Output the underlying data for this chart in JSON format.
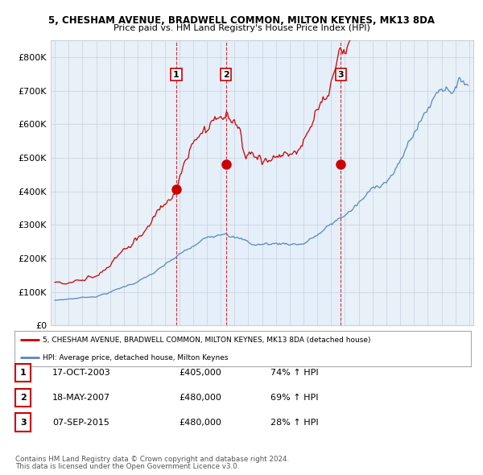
{
  "title1": "5, CHESHAM AVENUE, BRADWELL COMMON, MILTON KEYNES, MK13 8DA",
  "title2": "Price paid vs. HM Land Registry's House Price Index (HPI)",
  "ylim": [
    0,
    850000
  ],
  "yticks": [
    0,
    100000,
    200000,
    300000,
    400000,
    500000,
    600000,
    700000,
    800000
  ],
  "ytick_labels": [
    "£0",
    "£100K",
    "£200K",
    "£300K",
    "£400K",
    "£500K",
    "£600K",
    "£700K",
    "£800K"
  ],
  "sale_dates": [
    2003.79,
    2007.38,
    2015.69
  ],
  "sale_prices": [
    405000,
    480000,
    480000
  ],
  "sale_labels": [
    "1",
    "2",
    "3"
  ],
  "legend_label_red": "5, CHESHAM AVENUE, BRADWELL COMMON, MILTON KEYNES, MK13 8DA (detached house)",
  "legend_label_blue": "HPI: Average price, detached house, Milton Keynes",
  "table_data": [
    [
      "1",
      "17-OCT-2003",
      "£405,000",
      "74% ↑ HPI"
    ],
    [
      "2",
      "18-MAY-2007",
      "£480,000",
      "69% ↑ HPI"
    ],
    [
      "3",
      "07-SEP-2015",
      "£480,000",
      "28% ↑ HPI"
    ]
  ],
  "footnote1": "Contains HM Land Registry data © Crown copyright and database right 2024.",
  "footnote2": "This data is licensed under the Open Government Licence v3.0.",
  "red_color": "#cc0000",
  "blue_color": "#5588bb",
  "shade_color": "#ddeeff",
  "vline_color": "#cc0000",
  "bg_color": "#ffffff",
  "plot_bg_color": "#e8f0f8",
  "grid_color": "#c8d0dc"
}
